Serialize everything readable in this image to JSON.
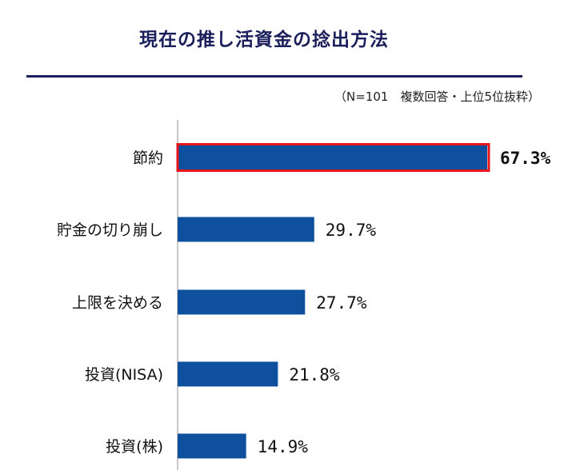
{
  "chart_data": {
    "type": "bar",
    "orientation": "horizontal",
    "title": "現在の推し活資金の捻出方法",
    "note": "（N=101　複数回答・上位5位抜粋）",
    "categories": [
      "節約",
      "貯金の切り崩し",
      "上限を決める",
      "投資(NISA)",
      "投資(株)"
    ],
    "values": [
      67.3,
      29.7,
      27.7,
      21.8,
      14.9
    ],
    "value_labels": [
      "67.3%",
      "29.7%",
      "27.7%",
      "21.8%",
      "14.9%"
    ],
    "highlight_index": 0,
    "xlim": [
      0,
      70
    ],
    "colors": {
      "bar": "#0e4f9e",
      "highlight_border": "#e8141c",
      "highlight_text": "#e8141c",
      "title": "#1a1f5c",
      "axis": "#c8c8c8"
    }
  }
}
